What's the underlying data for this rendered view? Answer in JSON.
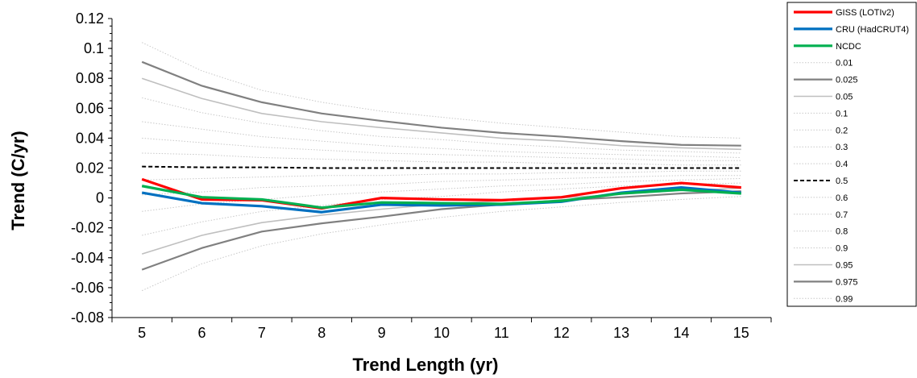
{
  "chart_data": {
    "type": "line",
    "title": "",
    "xlabel": "Trend Length (yr)",
    "ylabel": "Trend (C/yr)",
    "xlim": [
      5,
      15
    ],
    "ylim": [
      -0.08,
      0.12
    ],
    "x_ticks": [
      "5",
      "6",
      "7",
      "8",
      "9",
      "10",
      "11",
      "12",
      "13",
      "14",
      "15"
    ],
    "y_ticks": [
      "0.12",
      "0.1",
      "0.08",
      "0.06",
      "0.04",
      "0.02",
      "0",
      "-0.02",
      "-0.04",
      "-0.06",
      "-0.08"
    ],
    "grid": false,
    "legend_position": "right",
    "x": [
      5,
      6,
      7,
      8,
      9,
      10,
      11,
      12,
      13,
      14,
      15
    ],
    "series": [
      {
        "name": "GISS (LOTIv2)",
        "color": "#ff0000",
        "style": "thick",
        "values": [
          0.0125,
          -0.001,
          -0.0015,
          -0.007,
          0.0,
          -0.001,
          -0.0015,
          0.0005,
          0.0065,
          0.01,
          0.007
        ]
      },
      {
        "name": "CRU (HadCRUT4)",
        "color": "#0070c0",
        "style": "thick",
        "values": [
          0.0035,
          -0.0035,
          -0.0055,
          -0.0095,
          -0.0045,
          -0.005,
          -0.0045,
          -0.0025,
          0.0035,
          0.007,
          0.0035
        ]
      },
      {
        "name": "NCDC",
        "color": "#00b050",
        "style": "thick",
        "values": [
          0.008,
          0.0005,
          -0.001,
          -0.0065,
          -0.003,
          -0.0035,
          -0.004,
          -0.002,
          0.003,
          0.0055,
          0.003
        ]
      },
      {
        "name": "0.01",
        "color": "#c8c8c8",
        "style": "dotted",
        "values": [
          0.104,
          0.085,
          0.072,
          0.064,
          0.058,
          0.054,
          0.05,
          0.047,
          0.044,
          0.041,
          0.04
        ]
      },
      {
        "name": "0.025",
        "color": "#808080",
        "style": "solid-dark",
        "values": [
          0.091,
          0.075,
          0.064,
          0.0565,
          0.0515,
          0.047,
          0.0435,
          0.041,
          0.038,
          0.0355,
          0.035
        ]
      },
      {
        "name": "0.05",
        "color": "#bfbfbf",
        "style": "solid-light",
        "values": [
          0.08,
          0.0665,
          0.0565,
          0.051,
          0.047,
          0.0435,
          0.04,
          0.038,
          0.035,
          0.0335,
          0.0325
        ]
      },
      {
        "name": "0.1",
        "color": "#c8c8c8",
        "style": "dotted",
        "values": [
          0.067,
          0.057,
          0.05,
          0.045,
          0.041,
          0.039,
          0.036,
          0.034,
          0.032,
          0.031,
          0.03
        ]
      },
      {
        "name": "0.2",
        "color": "#c8c8c8",
        "style": "dotted",
        "values": [
          0.051,
          0.046,
          0.041,
          0.038,
          0.035,
          0.033,
          0.031,
          0.03,
          0.029,
          0.028,
          0.027
        ]
      },
      {
        "name": "0.3",
        "color": "#c8c8c8",
        "style": "dotted",
        "values": [
          0.04,
          0.037,
          0.034,
          0.032,
          0.03,
          0.029,
          0.028,
          0.027,
          0.026,
          0.025,
          0.025
        ]
      },
      {
        "name": "0.4",
        "color": "#c8c8c8",
        "style": "dotted",
        "values": [
          0.03,
          0.029,
          0.027,
          0.026,
          0.025,
          0.024,
          0.024,
          0.023,
          0.023,
          0.022,
          0.022
        ]
      },
      {
        "name": "0.5",
        "color": "#000000",
        "style": "dashed",
        "values": [
          0.021,
          0.0205,
          0.0205,
          0.02,
          0.02,
          0.02,
          0.02,
          0.02,
          0.02,
          0.02,
          0.02
        ]
      },
      {
        "name": "0.6",
        "color": "#c8c8c8",
        "style": "dotted",
        "values": [
          0.012,
          0.013,
          0.014,
          0.015,
          0.015,
          0.016,
          0.016,
          0.017,
          0.017,
          0.018,
          0.018
        ]
      },
      {
        "name": "0.7",
        "color": "#c8c8c8",
        "style": "dotted",
        "values": [
          0.002,
          0.004,
          0.007,
          0.008,
          0.009,
          0.011,
          0.012,
          0.013,
          0.014,
          0.015,
          0.015
        ]
      },
      {
        "name": "0.8",
        "color": "#c8c8c8",
        "style": "dotted",
        "values": [
          -0.009,
          -0.004,
          -0.001,
          0.002,
          0.004,
          0.006,
          0.008,
          0.009,
          0.011,
          0.012,
          0.013
        ]
      },
      {
        "name": "0.9",
        "color": "#c8c8c8",
        "style": "dotted",
        "values": [
          -0.025,
          -0.016,
          -0.009,
          -0.005,
          -0.001,
          0.001,
          0.004,
          0.006,
          0.008,
          0.009,
          0.01
        ]
      },
      {
        "name": "0.95",
        "color": "#bfbfbf",
        "style": "solid-light",
        "values": [
          -0.0375,
          -0.025,
          -0.0165,
          -0.0115,
          -0.0075,
          -0.004,
          -0.002,
          0.0,
          0.0025,
          0.005,
          0.0065
        ]
      },
      {
        "name": "0.975",
        "color": "#808080",
        "style": "solid-dark",
        "values": [
          -0.048,
          -0.0335,
          -0.0225,
          -0.017,
          -0.0125,
          -0.0075,
          -0.0045,
          -0.0015,
          0.0005,
          0.003,
          0.0045
        ]
      },
      {
        "name": "0.99",
        "color": "#c8c8c8",
        "style": "dotted",
        "values": [
          -0.062,
          -0.044,
          -0.032,
          -0.024,
          -0.018,
          -0.013,
          -0.009,
          -0.006,
          -0.003,
          -0.001,
          0.001
        ]
      }
    ]
  }
}
